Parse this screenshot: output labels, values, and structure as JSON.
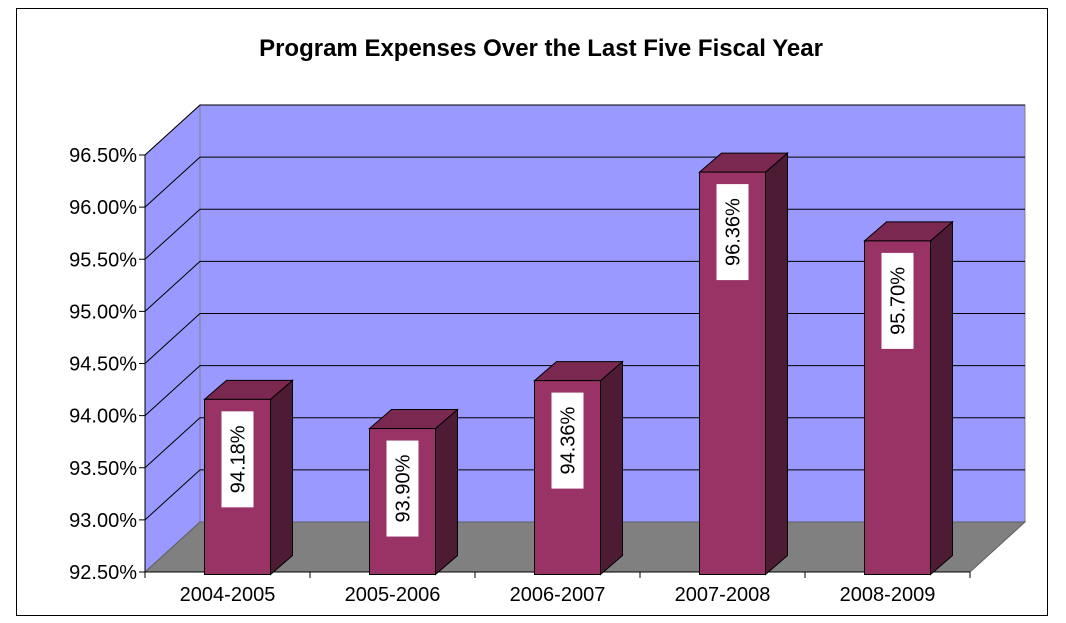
{
  "chart_data": {
    "type": "bar",
    "title": "Program Expenses Over the Last Five Fiscal Year",
    "xlabel": "",
    "ylabel": "",
    "categories": [
      "2004-2005",
      "2005-2006",
      "2006-2007",
      "2007-2008",
      "2008-2009"
    ],
    "values": [
      94.18,
      93.9,
      94.36,
      96.36,
      95.7
    ],
    "data_labels": [
      "94.18%",
      "93.90%",
      "94.36%",
      "96.36%",
      "95.70%"
    ],
    "yticks": [
      "92.50%",
      "93.00%",
      "93.50%",
      "94.00%",
      "94.50%",
      "95.00%",
      "95.50%",
      "96.00%",
      "96.50%"
    ],
    "ylim": [
      92.5,
      96.5
    ],
    "grid": true,
    "legend": "none",
    "three_d": true,
    "colors": {
      "bar_front": "#993366",
      "bar_side": "#4d1b33",
      "bar_top": "#7a2850",
      "back_wall": "#9999ff",
      "side_wall": "#9999ff",
      "floor": "#808080",
      "gridline": "#000000"
    }
  }
}
